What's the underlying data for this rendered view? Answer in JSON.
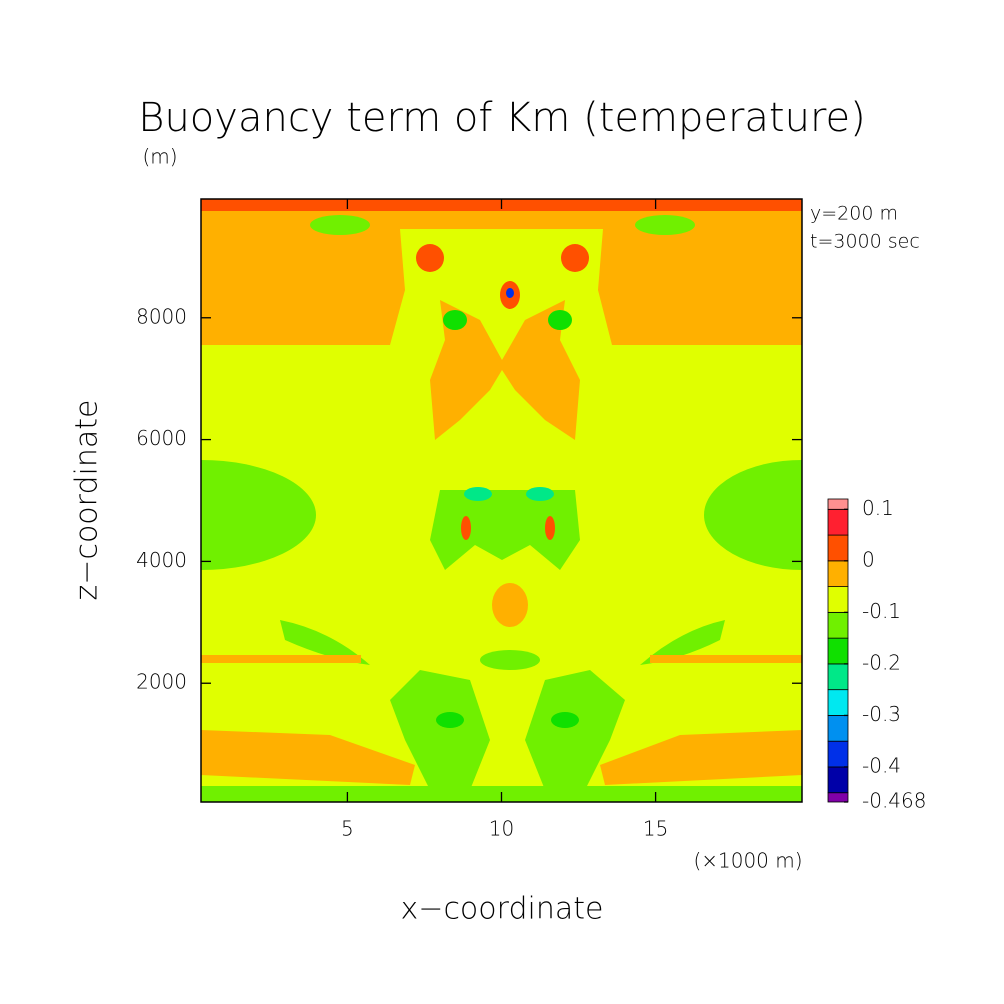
{
  "chart_data": {
    "type": "contour",
    "title": "Buoyancy term of Km (temperature)",
    "y_unit": "(m)",
    "x_unit": "(×1000 m)",
    "xlabel": "x−coordinate",
    "ylabel": "z−coordinate",
    "annotations": [
      "y=200 m",
      "t=3000 sec"
    ],
    "xlim": [
      0.25,
      19.75
    ],
    "xticks": [
      5,
      10,
      15
    ],
    "ylim": [
      50,
      9950
    ],
    "yticks": [
      2000,
      4000,
      6000,
      8000
    ],
    "colorbar": {
      "lim": [
        -0.468,
        0.12
      ],
      "ticks": [
        0.1,
        0,
        -0.1,
        -0.2,
        -0.3,
        -0.4,
        -0.468
      ],
      "levels": [
        -0.468,
        -0.45,
        -0.4,
        -0.35,
        -0.3,
        -0.25,
        -0.2,
        -0.15,
        -0.1,
        -0.05,
        0,
        0.05,
        0.1,
        0.12
      ],
      "colors": [
        "#8000a8",
        "#0000a8",
        "#0030e8",
        "#0090f0",
        "#00e8f0",
        "#00e888",
        "#10e000",
        "#70f000",
        "#e0ff00",
        "#ffb000",
        "#ff5000",
        "#ff2030",
        "#ff9090"
      ]
    }
  }
}
